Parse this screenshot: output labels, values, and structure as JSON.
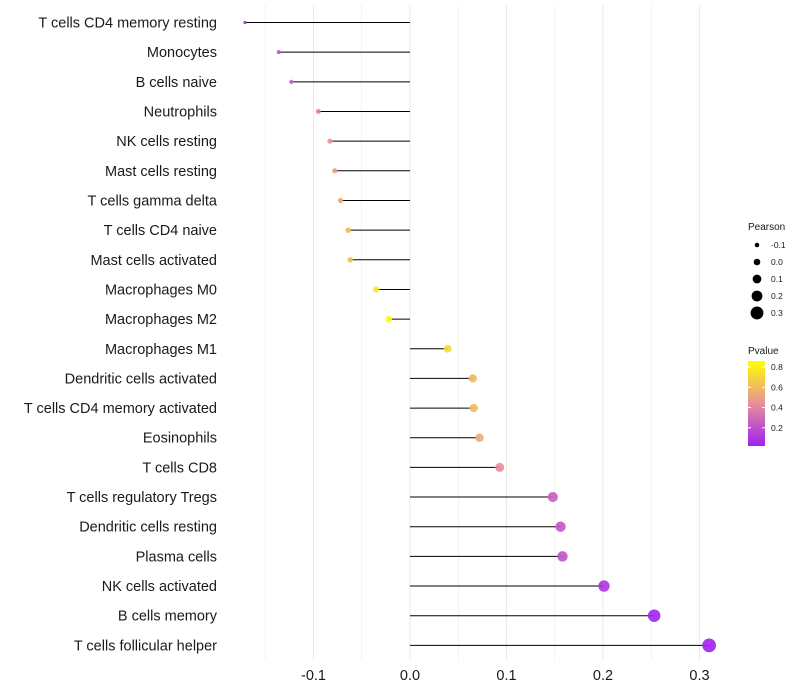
{
  "chart_data": {
    "type": "lollipop",
    "title": "",
    "xlabel": "",
    "ylabel": "",
    "xlim": [
      -0.18,
      0.32
    ],
    "x_ticks": [
      -0.1,
      0.0,
      0.1,
      0.2,
      0.3
    ],
    "x_tick_labels": [
      "-0.1",
      "0.0",
      "0.1",
      "0.2",
      "0.3"
    ],
    "grid": true,
    "points": [
      {
        "name": "T cells CD4 memory resting",
        "value": -0.171,
        "pvalue": 0.05
      },
      {
        "name": "Monocytes",
        "value": -0.136,
        "pvalue": 0.2
      },
      {
        "name": "B cells naive",
        "value": -0.123,
        "pvalue": 0.25
      },
      {
        "name": "Neutrophils",
        "value": -0.095,
        "pvalue": 0.38
      },
      {
        "name": "NK cells resting",
        "value": -0.083,
        "pvalue": 0.45
      },
      {
        "name": "Mast cells resting",
        "value": -0.078,
        "pvalue": 0.5
      },
      {
        "name": "T cells gamma delta",
        "value": -0.072,
        "pvalue": 0.54
      },
      {
        "name": "T cells CD4 naive",
        "value": -0.064,
        "pvalue": 0.6
      },
      {
        "name": "Mast cells activated",
        "value": -0.062,
        "pvalue": 0.62
      },
      {
        "name": "Macrophages M0",
        "value": -0.035,
        "pvalue": 0.77
      },
      {
        "name": "Macrophages M2",
        "value": -0.022,
        "pvalue": 0.85
      },
      {
        "name": "Macrophages M1",
        "value": 0.039,
        "pvalue": 0.72
      },
      {
        "name": "Dendritic cells activated",
        "value": 0.065,
        "pvalue": 0.6
      },
      {
        "name": "T cells CD4 memory activated",
        "value": 0.066,
        "pvalue": 0.6
      },
      {
        "name": "Eosinophils",
        "value": 0.072,
        "pvalue": 0.55
      },
      {
        "name": "T cells CD8",
        "value": 0.093,
        "pvalue": 0.42
      },
      {
        "name": "T cells regulatory  Tregs",
        "value": 0.148,
        "pvalue": 0.25
      },
      {
        "name": "Dendritic cells resting",
        "value": 0.156,
        "pvalue": 0.22
      },
      {
        "name": "Plasma cells",
        "value": 0.158,
        "pvalue": 0.21
      },
      {
        "name": "NK cells activated",
        "value": 0.201,
        "pvalue": 0.1
      },
      {
        "name": "B cells memory",
        "value": 0.253,
        "pvalue": 0.03
      },
      {
        "name": "T cells follicular helper",
        "value": 0.31,
        "pvalue": 0.01
      }
    ],
    "legend": {
      "size_title": "Pearson",
      "size_values": [
        -0.1,
        0.0,
        0.1,
        0.2,
        0.3
      ],
      "size_labels": [
        "-0.1",
        "0.0",
        "0.1",
        "0.2",
        "0.3"
      ],
      "color_title": "Pvalue",
      "color_range": [
        0.02,
        0.86
      ],
      "color_ticks": [
        0.8,
        0.6,
        0.4,
        0.2
      ],
      "color_tick_labels": [
        "0.8",
        "0.6",
        "0.4",
        "0.2"
      ],
      "placement": "right"
    },
    "colors": {
      "low": "#a020f0",
      "mid": "#e8909a",
      "high": "#ffff00",
      "stem": "#000000",
      "grid": "#ebebeb"
    }
  }
}
